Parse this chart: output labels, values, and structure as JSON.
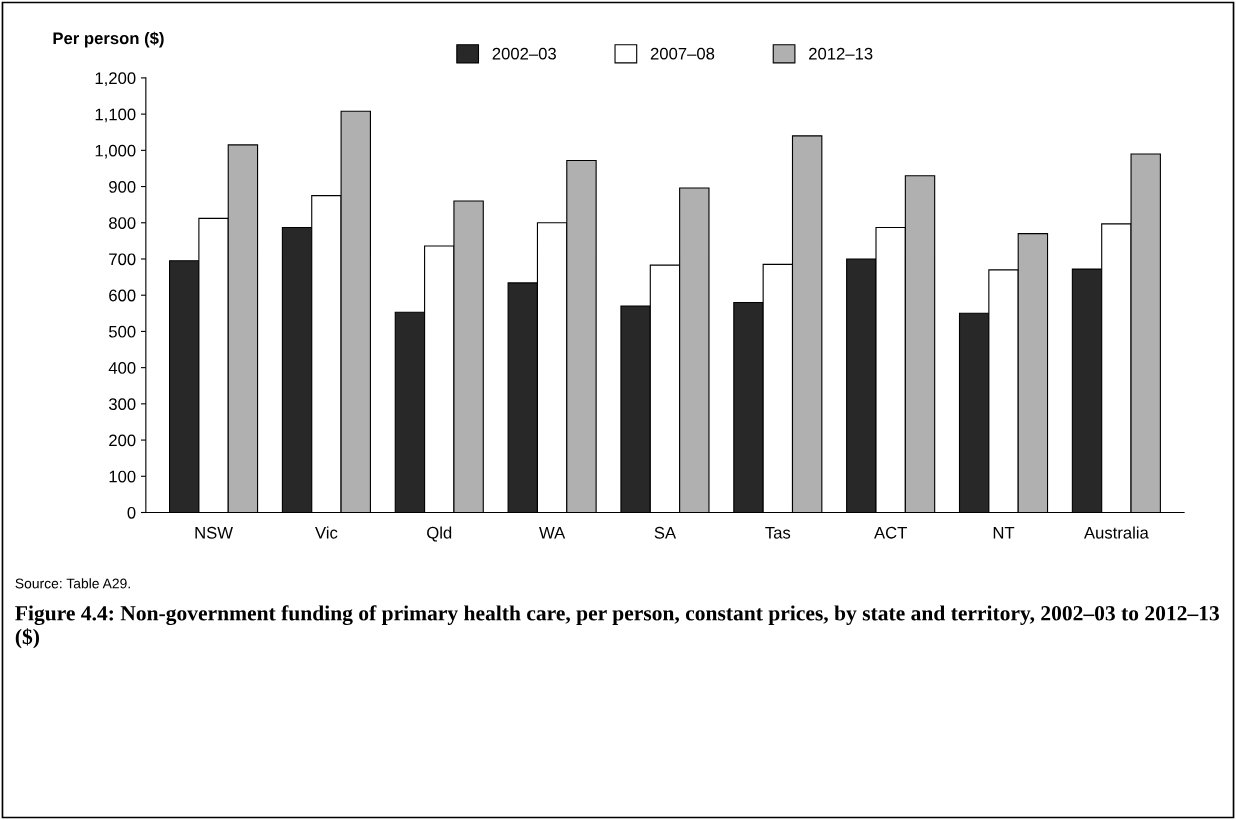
{
  "chart_data": {
    "type": "bar",
    "title": "Figure 4.4: Non-government funding of primary health care, per person, constant prices, by state and territory, 2002–03 to 2012–13 ($)",
    "ylabel": "Per person ($)",
    "annotations": [
      "Source: Table A29."
    ],
    "categories": [
      "NSW",
      "Vic",
      "Qld",
      "WA",
      "SA",
      "Tas",
      "ACT",
      "NT",
      "Australia"
    ],
    "series": [
      {
        "name": "2002–03",
        "color": "#282828",
        "values": [
          695,
          787,
          553,
          634,
          570,
          580,
          700,
          550,
          672
        ]
      },
      {
        "name": "2007–08",
        "color": "#ffffff",
        "values": [
          812,
          875,
          736,
          800,
          683,
          685,
          787,
          670,
          797
        ]
      },
      {
        "name": "2012–13",
        "color": "#b0b0b0",
        "values": [
          1015,
          1108,
          860,
          972,
          896,
          1040,
          930,
          770,
          990
        ]
      }
    ],
    "ylim": [
      0,
      1200
    ],
    "yticks": [
      {
        "value": 0,
        "label": "0"
      },
      {
        "value": 100,
        "label": "100"
      },
      {
        "value": 200,
        "label": "200"
      },
      {
        "value": 300,
        "label": "300"
      },
      {
        "value": 400,
        "label": "400"
      },
      {
        "value": 500,
        "label": "500"
      },
      {
        "value": 600,
        "label": "600"
      },
      {
        "value": 700,
        "label": "700"
      },
      {
        "value": 800,
        "label": "800"
      },
      {
        "value": 900,
        "label": "900"
      },
      {
        "value": 1000,
        "label": "1,000"
      },
      {
        "value": 1100,
        "label": "1,100"
      },
      {
        "value": 1200,
        "label": "1,200"
      }
    ],
    "grid": false,
    "legend": "top"
  }
}
